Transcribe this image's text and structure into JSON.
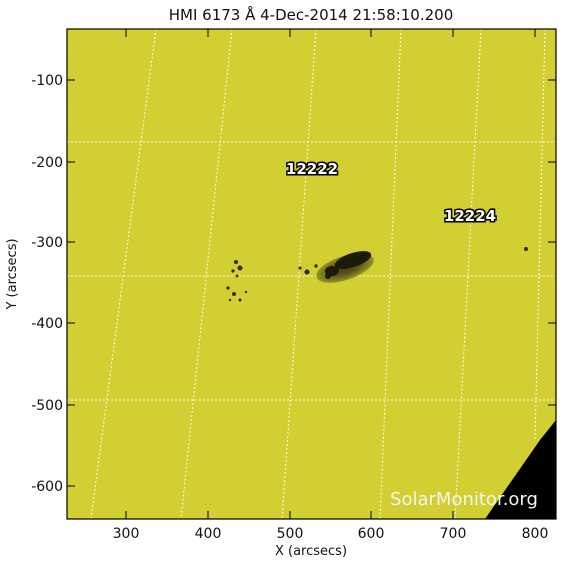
{
  "title": "HMI 6173 Å  4-Dec-2014 21:58:10.200",
  "x_axis_label": "X (arcsecs)",
  "y_axis_label": "Y (arcsecs)",
  "x_ticks": [
    "300",
    "400",
    "500",
    "600",
    "700",
    "800"
  ],
  "y_ticks": [
    "-100",
    "-200",
    "-300",
    "-400",
    "-500",
    "-600"
  ],
  "active_regions": [
    "12222",
    "12224"
  ],
  "watermark": "SolarMonitor.org",
  "colors": {
    "disk": "#cfcd30",
    "off_limb": "#000000",
    "grid": "#ffffff",
    "spots": "#1c1a08"
  }
}
